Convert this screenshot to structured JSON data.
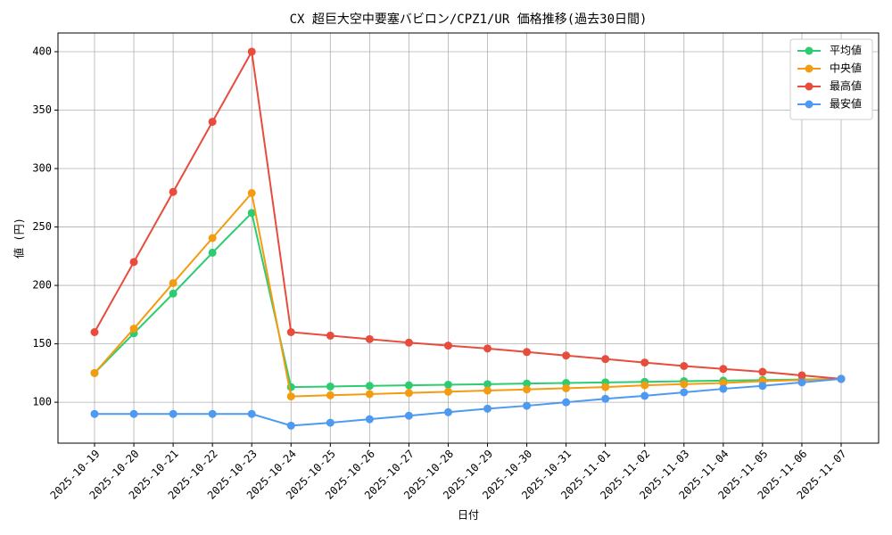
{
  "chart_data": {
    "type": "line",
    "title": "CX 超巨大空中要塞バビロン/CPZ1/UR 価格推移(過去30日間)",
    "x_label": "日付",
    "y_label": "値 (円)",
    "categories": [
      "2025-10-19",
      "2025-10-20",
      "2025-10-21",
      "2025-10-22",
      "2025-10-23",
      "2025-10-24",
      "2025-10-25",
      "2025-10-26",
      "2025-10-27",
      "2025-10-28",
      "2025-10-29",
      "2025-10-30",
      "2025-10-31",
      "2025-11-01",
      "2025-11-02",
      "2025-11-03",
      "2025-11-04",
      "2025-11-05",
      "2025-11-06",
      "2025-11-07"
    ],
    "series": [
      {
        "name": "平均値",
        "color": "#2ecc71",
        "values": [
          125,
          159,
          193,
          228,
          262,
          113,
          113.5,
          114,
          114.5,
          115,
          115.5,
          116,
          116.5,
          117,
          117.5,
          118,
          118.5,
          119,
          119.5,
          120
        ]
      },
      {
        "name": "中央値",
        "color": "#f39c12",
        "values": [
          125,
          163,
          202,
          240.5,
          279,
          105,
          106,
          107,
          108,
          109,
          110,
          111,
          112,
          113,
          114.5,
          115.5,
          116.5,
          118,
          119,
          120
        ]
      },
      {
        "name": "最高値",
        "color": "#e74c3c",
        "values": [
          160,
          220,
          280,
          340,
          400,
          160,
          157,
          154,
          151,
          148.5,
          146,
          143,
          140,
          137,
          134,
          131,
          128.5,
          126,
          123,
          120
        ]
      },
      {
        "name": "最安値",
        "color": "#4e9af1",
        "values": [
          90,
          90,
          90,
          90,
          90,
          80,
          82.5,
          85.5,
          88.5,
          91.5,
          94.5,
          97,
          100,
          103,
          105.5,
          108.5,
          111.5,
          114,
          117,
          120
        ]
      }
    ],
    "ylim": [
      65,
      416
    ],
    "yticks": [
      100,
      150,
      200,
      250,
      300,
      350,
      400
    ],
    "grid": true,
    "legend": "upper right"
  }
}
